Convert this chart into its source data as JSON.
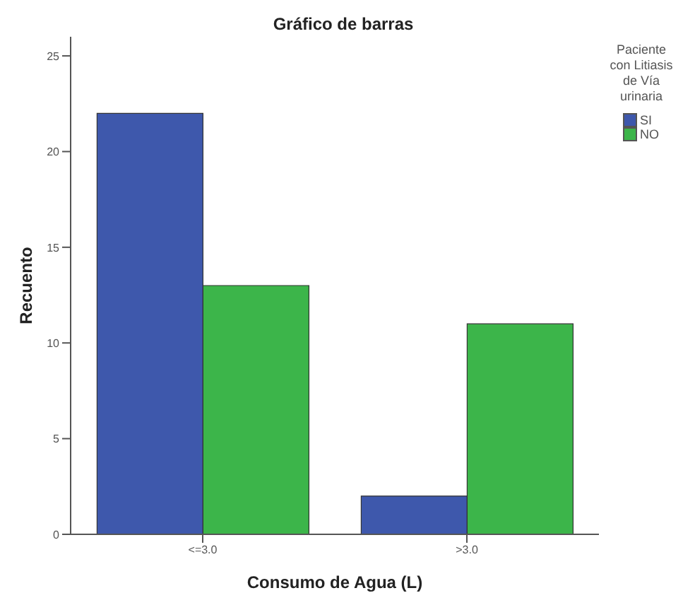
{
  "chart_data": {
    "type": "bar",
    "title": "Gráfico de barras",
    "xlabel": "Consumo de Agua (L)",
    "ylabel": "Recuento",
    "legend_title": "Paciente con Litiasis de Vía urinaria",
    "categories": [
      "<=3.0",
      ">3.0"
    ],
    "series": [
      {
        "name": "SI",
        "color": "#3e58ac",
        "values": [
          22,
          2
        ]
      },
      {
        "name": "NO",
        "color": "#3cb54a",
        "values": [
          13,
          11
        ]
      }
    ],
    "ylim": [
      0,
      26
    ],
    "yticks": [
      0,
      5,
      10,
      15,
      20,
      25
    ],
    "grid": false,
    "legend": "top right"
  }
}
